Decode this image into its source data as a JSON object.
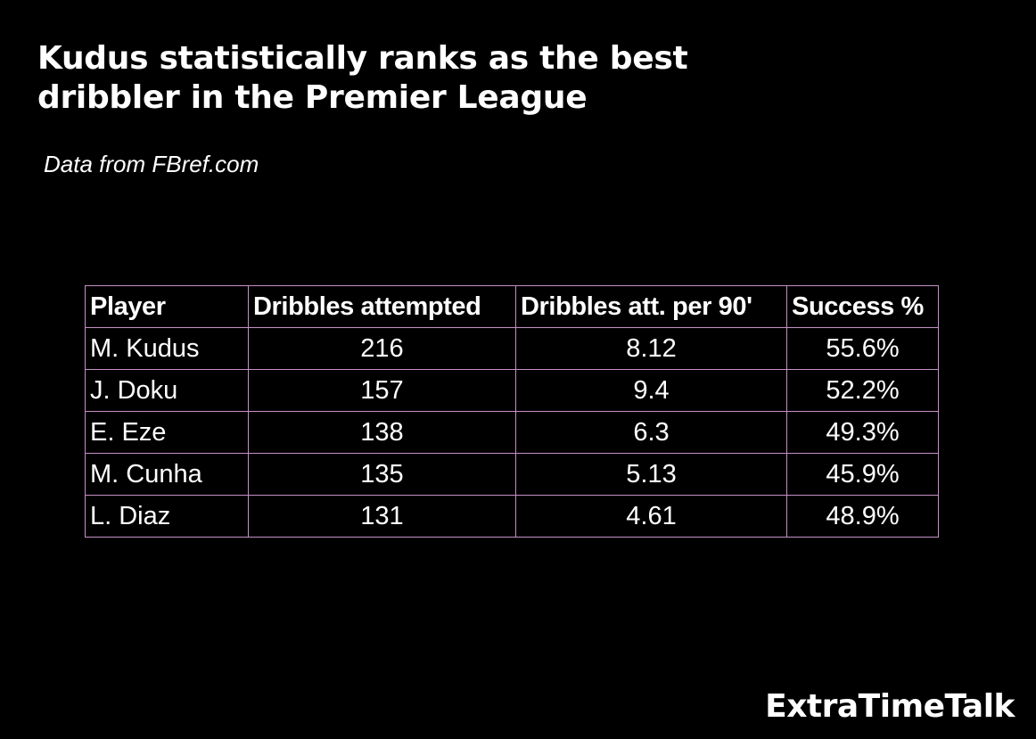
{
  "title_lines": [
    "Kudus statistically ranks as the best",
    "dribbler in the Premier League"
  ],
  "subtitle": "Data from FBref.com",
  "brand": "ExtraTimeTalk",
  "colors": {
    "background": "#000000",
    "text": "#ffffff",
    "table_border": "#c690c6"
  },
  "chart_data": {
    "type": "table",
    "title": "Kudus statistically ranks as the best dribbler in the Premier League",
    "subtitle": "Data from FBref.com",
    "columns": [
      "Player",
      "Dribbles attempted",
      "Dribbles att. per 90'",
      "Success %"
    ],
    "rows": [
      [
        "M. Kudus",
        "216",
        "8.12",
        "55.6%"
      ],
      [
        "J. Doku",
        "157",
        "9.4",
        "52.2%"
      ],
      [
        "E. Eze",
        "138",
        "6.3",
        "49.3%"
      ],
      [
        "M. Cunha",
        "135",
        "5.13",
        "45.9%"
      ],
      [
        "L. Diaz",
        "131",
        "4.61",
        "48.9%"
      ]
    ]
  }
}
